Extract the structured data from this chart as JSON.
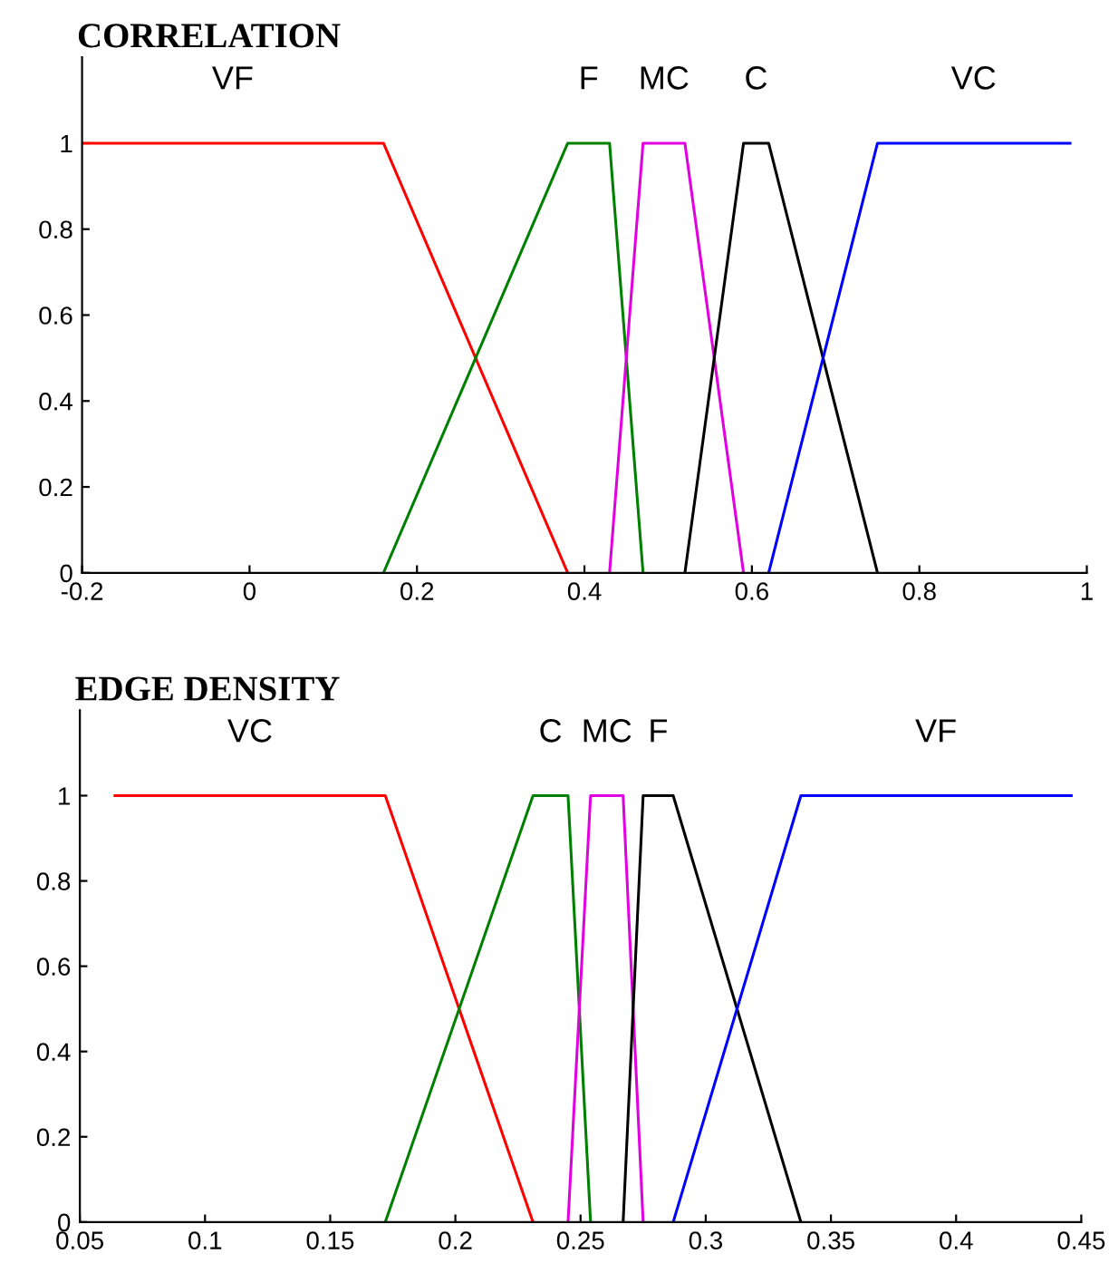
{
  "chart_data": [
    {
      "type": "line",
      "title": "CORRELATION",
      "xlim": [
        -0.2,
        1
      ],
      "ylim": [
        0,
        1.2
      ],
      "xticks": [
        -0.2,
        0,
        0.2,
        0.4,
        0.6,
        0.8,
        1
      ],
      "yticks": [
        0,
        0.2,
        0.4,
        0.6,
        0.8,
        1
      ],
      "grid": false,
      "legend": false,
      "marker": "none",
      "line_style": "solid",
      "series": [
        {
          "name": "VF",
          "color": "#ff0000",
          "x": [
            -0.2,
            0.16,
            0.38
          ],
          "values": [
            1,
            1,
            0
          ]
        },
        {
          "name": "F",
          "color": "#008000",
          "x": [
            0.16,
            0.38,
            0.43,
            0.47
          ],
          "values": [
            0,
            1,
            1,
            0
          ]
        },
        {
          "name": "MC",
          "color": "#e000e0",
          "x": [
            0.43,
            0.47,
            0.52,
            0.59
          ],
          "values": [
            0,
            1,
            1,
            0
          ]
        },
        {
          "name": "C",
          "color": "#000000",
          "x": [
            0.52,
            0.59,
            0.62,
            0.75
          ],
          "values": [
            0,
            1,
            1,
            0
          ]
        },
        {
          "name": "VC",
          "color": "#0000ff",
          "x": [
            0.62,
            0.75,
            0.98
          ],
          "values": [
            0,
            1,
            1
          ]
        }
      ]
    },
    {
      "type": "line",
      "title": "EDGE DENSITY",
      "xlim": [
        0.05,
        0.45
      ],
      "ylim": [
        0,
        1.2
      ],
      "xticks": [
        0.05,
        0.1,
        0.15,
        0.2,
        0.25,
        0.3,
        0.35,
        0.4,
        0.45
      ],
      "yticks": [
        0,
        0.2,
        0.4,
        0.6,
        0.8,
        1
      ],
      "grid": false,
      "legend": false,
      "marker": "none",
      "line_style": "solid",
      "series": [
        {
          "name": "VC",
          "color": "#ff0000",
          "x": [
            0.064,
            0.172,
            0.231
          ],
          "values": [
            1,
            1,
            0
          ]
        },
        {
          "name": "C",
          "color": "#008000",
          "x": [
            0.172,
            0.231,
            0.245,
            0.254
          ],
          "values": [
            0,
            1,
            1,
            0
          ]
        },
        {
          "name": "MC",
          "color": "#e000e0",
          "x": [
            0.245,
            0.254,
            0.267,
            0.275
          ],
          "values": [
            0,
            1,
            1,
            0
          ]
        },
        {
          "name": "F",
          "color": "#000000",
          "x": [
            0.267,
            0.275,
            0.287,
            0.338
          ],
          "values": [
            0,
            1,
            1,
            0
          ]
        },
        {
          "name": "VF",
          "color": "#0000ff",
          "x": [
            0.287,
            0.338,
            0.446
          ],
          "values": [
            0,
            1,
            1
          ]
        }
      ]
    }
  ]
}
